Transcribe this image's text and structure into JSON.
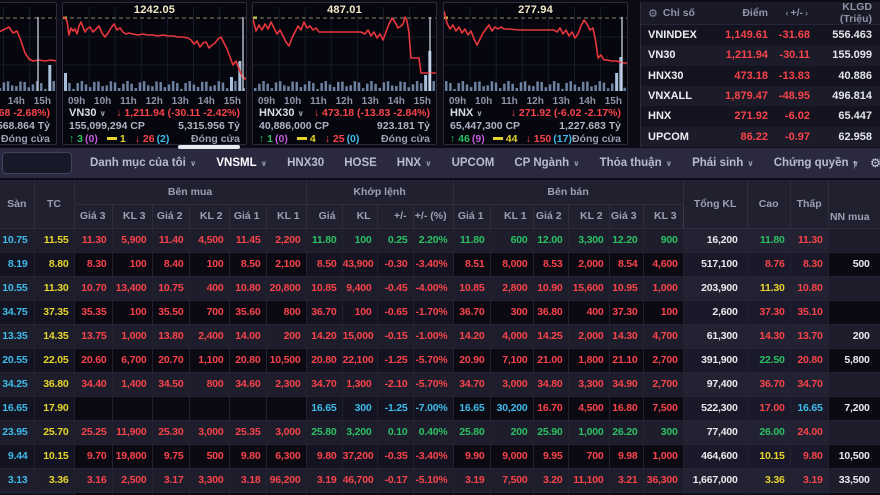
{
  "charts": [
    {
      "id": "vnindex-mini-chart",
      "clipped": true,
      "ref_label": "",
      "ticks": [
        "09h",
        "10h",
        "11h",
        "12h",
        "13h",
        "14h",
        "15h"
      ],
      "change_fragment": "31.68 -2.68%)",
      "value_fragment": "2,568.864 Tỷ",
      "status_fragment_cyan": ")",
      "close": "Đóng cửa"
    },
    {
      "id": "vn30-mini-chart",
      "symbol": "VN30",
      "ref_label": "1242.05",
      "ticks": [
        "09h",
        "10h",
        "11h",
        "12h",
        "13h",
        "14h",
        "15h"
      ],
      "change": "↓ 1,211.94 (-30.11 -2.42%)",
      "volume": "155,099,294 CP",
      "value": "5,315.956 Tỷ",
      "up": "↑ 3",
      "up_paren": "(0)",
      "flat": "1",
      "down": "↓ 26",
      "down_paren": "(2)",
      "close": "Đóng cửa"
    },
    {
      "id": "hnx30-mini-chart",
      "symbol": "HNX30",
      "ref_label": "487.01",
      "ticks": [
        "09h",
        "10h",
        "11h",
        "12h",
        "13h",
        "14h",
        "15h"
      ],
      "change": "↓ 473.18 (-13.83 -2.84%)",
      "volume": "40,886,000 CP",
      "value": "923.181 Tỷ",
      "up": "↑ 1",
      "up_paren": "(0)",
      "flat": "4",
      "down": "↓ 25",
      "down_paren": "(0)",
      "close": "Đóng cửa"
    },
    {
      "id": "hnx-mini-chart",
      "symbol": "HNX",
      "ref_label": "277.94",
      "ticks": [
        "09h",
        "10h",
        "11h",
        "12h",
        "13h",
        "14h",
        "15h"
      ],
      "change": "↓ 271.92 (-6.02 -2.17%)",
      "volume": "65,447,300 CP",
      "value": "1,227.683 Tỷ",
      "up": "↑ 46",
      "up_paren": "(9)",
      "flat": "44",
      "down": "↓ 150",
      "down_paren": "(17)",
      "close": "Đóng cửa"
    }
  ],
  "index_panel": {
    "header": {
      "name": "Chỉ số",
      "point": "Điểm",
      "change": "+/-",
      "left_arrow": "‹",
      "right_arrow": "›",
      "klgd": "KLGD (Triệu)",
      "gtgd_partial": "G"
    },
    "rows": [
      {
        "name": "VNINDEX",
        "point": "1,149.61",
        "change": "-31.68",
        "klgd": "556.463",
        "gtgd": "12"
      },
      {
        "name": "VN30",
        "point": "1,211.94",
        "change": "-30.11",
        "klgd": "155.099",
        "gtgd": "5"
      },
      {
        "name": "HNX30",
        "point": "473.18",
        "change": "-13.83",
        "klgd": "40.886",
        "gtgd": ""
      },
      {
        "name": "VNXALL",
        "point": "1,879.47",
        "change": "-48.95",
        "klgd": "496.814",
        "gtgd": "12"
      },
      {
        "name": "HNX",
        "point": "271.92",
        "change": "-6.02",
        "klgd": "65.447",
        "gtgd": "1"
      },
      {
        "name": "UPCOM",
        "point": "86.22",
        "change": "-0.97",
        "klgd": "62.958",
        "gtgd": "1"
      }
    ]
  },
  "nav": {
    "search_value": "",
    "up_arrow": "↑",
    "tabs": [
      {
        "label": "Danh mục của tôi",
        "chevron": true
      },
      {
        "label": "VNSML",
        "chevron": true,
        "active": true
      },
      {
        "label": "HNX30"
      },
      {
        "label": "HOSE"
      },
      {
        "label": "HNX",
        "chevron": true
      },
      {
        "label": "UPCOM"
      },
      {
        "label": "CP Ngành",
        "chevron": true
      },
      {
        "label": "Thỏa thuận",
        "chevron": true
      },
      {
        "label": "Phái sinh",
        "chevron": true
      },
      {
        "label": "Chứng quyền",
        "chevron": true
      },
      {
        "label": "ETF"
      },
      {
        "label": "Lô lẻ",
        "chevron": true
      }
    ]
  },
  "board": {
    "headers": {
      "san": "Sàn",
      "tc": "TC",
      "buy_group": "Bên mua",
      "match_group": "Khớp lệnh",
      "sell_group": "Bên bán",
      "buy_subs": [
        "Giá 3",
        "KL 3",
        "Giá 2",
        "KL 2",
        "Giá 1",
        "KL 1"
      ],
      "match_subs": [
        "Giá",
        "KL",
        "+/-",
        "+/- (%)"
      ],
      "sell_subs": [
        "Giá 1",
        "KL 1",
        "Giá 2",
        "KL 2",
        "Giá 3",
        "KL 3"
      ],
      "total": "Tổng KL",
      "high": "Cao",
      "low": "Thấp",
      "foreign": "NN mua"
    },
    "rows": [
      {
        "san": "10.75",
        "tc": "11.55",
        "buy": [
          [
            "11.30",
            "5,900",
            "r"
          ],
          [
            "11.40",
            "4,500",
            "r"
          ],
          [
            "11.45",
            "2,200",
            "r"
          ]
        ],
        "match": [
          "11.80",
          "100",
          "0.25",
          "2.20%",
          "g"
        ],
        "sell": [
          [
            "11.80",
            "600",
            "g"
          ],
          [
            "12.00",
            "3,300",
            "g"
          ],
          [
            "12.20",
            "900",
            "g"
          ]
        ],
        "total": "16,200",
        "high": [
          "11.80",
          "g"
        ],
        "low": [
          "11.30",
          "r"
        ],
        "foreign": ""
      },
      {
        "san": "8.19",
        "tc": "8.80",
        "buy": [
          [
            "8.30",
            "100",
            "r"
          ],
          [
            "8.40",
            "100",
            "r"
          ],
          [
            "8.50",
            "2,100",
            "r"
          ]
        ],
        "match": [
          "8.50",
          "43,900",
          "-0.30",
          "-3.40%",
          "r"
        ],
        "sell": [
          [
            "8.51",
            "8,000",
            "r"
          ],
          [
            "8.53",
            "2,000",
            "r"
          ],
          [
            "8.54",
            "4,600",
            "r"
          ]
        ],
        "total": "517,100",
        "high": [
          "8.76",
          "r"
        ],
        "low": [
          "8.30",
          "r"
        ],
        "foreign": "500"
      },
      {
        "san": "10.55",
        "tc": "11.30",
        "buy": [
          [
            "10.70",
            "13,400",
            "r"
          ],
          [
            "10.75",
            "400",
            "r"
          ],
          [
            "10.80",
            "20,800",
            "r"
          ]
        ],
        "match": [
          "10.85",
          "9,400",
          "-0.45",
          "-4.00%",
          "r"
        ],
        "sell": [
          [
            "10.85",
            "2,800",
            "r"
          ],
          [
            "10.90",
            "15,600",
            "r"
          ],
          [
            "10.95",
            "1,000",
            "r"
          ]
        ],
        "total": "203,900",
        "high": [
          "11.30",
          "y"
        ],
        "low": [
          "10.80",
          "r"
        ],
        "foreign": ""
      },
      {
        "san": "34.75",
        "tc": "37.35",
        "buy": [
          [
            "35.35",
            "100",
            "r"
          ],
          [
            "35.50",
            "700",
            "r"
          ],
          [
            "35.60",
            "800",
            "r"
          ]
        ],
        "match": [
          "36.70",
          "100",
          "-0.65",
          "-1.70%",
          "r"
        ],
        "sell": [
          [
            "36.70",
            "300",
            "r"
          ],
          [
            "36.80",
            "400",
            "r"
          ],
          [
            "37.30",
            "100",
            "r"
          ]
        ],
        "total": "2,600",
        "high": [
          "37.30",
          "r"
        ],
        "low": [
          "35.10",
          "r"
        ],
        "foreign": ""
      },
      {
        "san": "13.35",
        "tc": "14.35",
        "buy": [
          [
            "13.75",
            "1,000",
            "r"
          ],
          [
            "13.80",
            "2,400",
            "r"
          ],
          [
            "14.00",
            "200",
            "r"
          ]
        ],
        "match": [
          "14.20",
          "15,000",
          "-0.15",
          "-1.00%",
          "r"
        ],
        "sell": [
          [
            "14.20",
            "4,000",
            "r"
          ],
          [
            "14.25",
            "2,000",
            "r"
          ],
          [
            "14.30",
            "4,700",
            "r"
          ]
        ],
        "total": "61,300",
        "high": [
          "14.30",
          "r"
        ],
        "low": [
          "13.70",
          "r"
        ],
        "foreign": "200"
      },
      {
        "san": "20.55",
        "tc": "22.05",
        "buy": [
          [
            "20.60",
            "6,700",
            "r"
          ],
          [
            "20.70",
            "1,100",
            "r"
          ],
          [
            "20.80",
            "10,500",
            "r"
          ]
        ],
        "match": [
          "20.80",
          "22,100",
          "-1.25",
          "-5.70%",
          "r"
        ],
        "sell": [
          [
            "20.90",
            "7,100",
            "r"
          ],
          [
            "21.00",
            "1,800",
            "r"
          ],
          [
            "21.10",
            "2,700",
            "r"
          ]
        ],
        "total": "391,900",
        "high": [
          "22.50",
          "g"
        ],
        "low": [
          "20.80",
          "r"
        ],
        "foreign": "5,800"
      },
      {
        "san": "34.25",
        "tc": "36.80",
        "buy": [
          [
            "34.40",
            "1,400",
            "r"
          ],
          [
            "34.50",
            "800",
            "r"
          ],
          [
            "34.60",
            "2,300",
            "r"
          ]
        ],
        "match": [
          "34.70",
          "1,300",
          "-2.10",
          "-5.70%",
          "r"
        ],
        "sell": [
          [
            "34.70",
            "3,000",
            "r"
          ],
          [
            "34.80",
            "3,300",
            "r"
          ],
          [
            "34.90",
            "2,700",
            "r"
          ]
        ],
        "total": "97,400",
        "high": [
          "36.70",
          "r"
        ],
        "low": [
          "34.70",
          "r"
        ],
        "foreign": ""
      },
      {
        "san": "16.65",
        "tc": "17.90",
        "buy": [
          [
            "",
            "",
            "r"
          ],
          [
            "",
            "",
            "r"
          ],
          [
            "",
            "",
            "r"
          ]
        ],
        "match": [
          "16.65",
          "300",
          "-1.25",
          "-7.00%",
          "c"
        ],
        "sell": [
          [
            "16.65",
            "30,200",
            "c"
          ],
          [
            "16.70",
            "4,500",
            "r"
          ],
          [
            "16.80",
            "7,500",
            "r"
          ]
        ],
        "total": "522,300",
        "high": [
          "17.00",
          "r"
        ],
        "low": [
          "16.65",
          "c"
        ],
        "foreign": "7,200"
      },
      {
        "san": "23.95",
        "tc": "25.70",
        "buy": [
          [
            "25.25",
            "11,900",
            "r"
          ],
          [
            "25.30",
            "3,000",
            "r"
          ],
          [
            "25.35",
            "3,000",
            "r"
          ]
        ],
        "match": [
          "25.80",
          "3,200",
          "0.10",
          "0.40%",
          "g"
        ],
        "sell": [
          [
            "25.80",
            "200",
            "g"
          ],
          [
            "25.90",
            "1,000",
            "g"
          ],
          [
            "26.20",
            "300",
            "g"
          ]
        ],
        "total": "77,400",
        "high": [
          "26.00",
          "g"
        ],
        "low": [
          "24.00",
          "r"
        ],
        "foreign": ""
      },
      {
        "san": "9.44",
        "tc": "10.15",
        "buy": [
          [
            "9.70",
            "19,800",
            "r"
          ],
          [
            "9.75",
            "500",
            "r"
          ],
          [
            "9.80",
            "6,300",
            "r"
          ]
        ],
        "match": [
          "9.80",
          "37,200",
          "-0.35",
          "-3.40%",
          "r"
        ],
        "sell": [
          [
            "9.90",
            "9,000",
            "r"
          ],
          [
            "9.95",
            "700",
            "r"
          ],
          [
            "9.98",
            "1,000",
            "r"
          ]
        ],
        "total": "464,600",
        "high": [
          "10.15",
          "y"
        ],
        "low": [
          "9.80",
          "r"
        ],
        "foreign": "10,500"
      },
      {
        "san": "3.13",
        "tc": "3.36",
        "buy": [
          [
            "3.16",
            "2,500",
            "r"
          ],
          [
            "3.17",
            "3,300",
            "r"
          ],
          [
            "3.18",
            "96,200",
            "r"
          ]
        ],
        "match": [
          "3.19",
          "46,700",
          "-0.17",
          "-5.10%",
          "r"
        ],
        "sell": [
          [
            "3.19",
            "7,500",
            "r"
          ],
          [
            "3.20",
            "11,100",
            "r"
          ],
          [
            "3.21",
            "36,300",
            "r"
          ]
        ],
        "total": "1,667,000",
        "high": [
          "3.36",
          "y"
        ],
        "low": [
          "3.19",
          "r"
        ],
        "foreign": "33,500"
      }
    ]
  }
}
